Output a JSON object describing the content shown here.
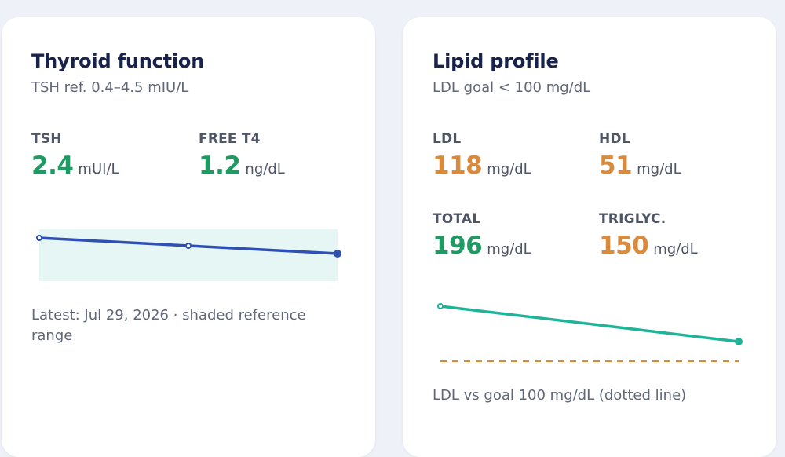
{
  "thyroid": {
    "title": "Thyroid function",
    "subtitle": "TSH ref. 0.4–4.5 mIU/L",
    "metrics": [
      {
        "label": "TSH",
        "value": "2.4",
        "unit": "mUI/L",
        "tone": "green"
      },
      {
        "label": "FREE T4",
        "value": "1.2",
        "unit": "ng/dL",
        "tone": "green"
      }
    ],
    "caption": "Latest: Jul 29, 2026 · shaded reference range",
    "chart_data": {
      "type": "line",
      "points": 3,
      "trend": "decreasing",
      "reference_band": "shaded",
      "line_color": "#2f4fb5",
      "band_color": "#e5f6f4"
    }
  },
  "lipid": {
    "title": "Lipid profile",
    "subtitle": "LDL goal < 100 mg/dL",
    "metrics": [
      {
        "label": "LDL",
        "value": "118",
        "unit": "mg/dL",
        "tone": "orange"
      },
      {
        "label": "HDL",
        "value": "51",
        "unit": "mg/dL",
        "tone": "orange"
      },
      {
        "label": "TOTAL",
        "value": "196",
        "unit": "mg/dL",
        "tone": "green"
      },
      {
        "label": "TRIGLYC.",
        "value": "150",
        "unit": "mg/dL",
        "tone": "orange"
      }
    ],
    "caption": "LDL vs goal 100 mg/dL (dotted line)",
    "chart_data": {
      "type": "line",
      "points": 2,
      "trend": "decreasing",
      "goal_line": "dotted",
      "line_color": "#1fb39a",
      "goal_color": "#d98a3c"
    }
  },
  "colors": {
    "background": "#eef1f8",
    "card": "#ffffff",
    "title": "#17224d",
    "good": "#1f9a63",
    "warn": "#d98a3c"
  }
}
